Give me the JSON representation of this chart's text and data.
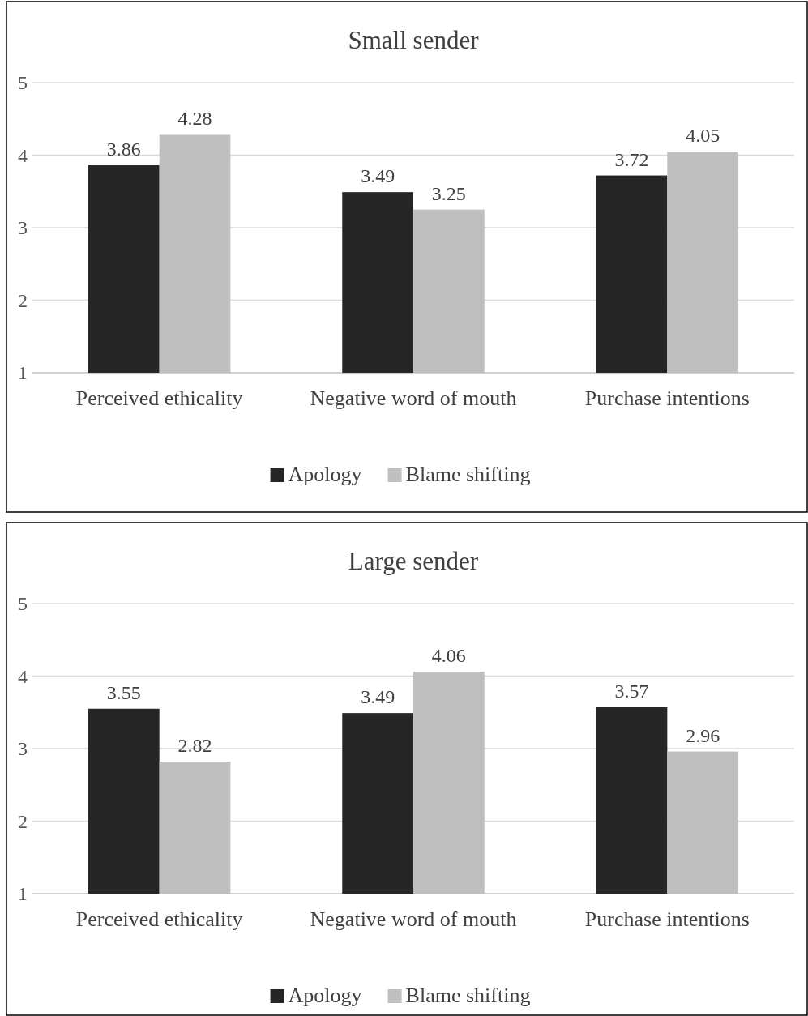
{
  "chart_data": [
    {
      "type": "bar",
      "title": "Small sender",
      "categories": [
        "Perceived ethicality",
        "Negative word of mouth",
        "Purchase intentions"
      ],
      "series": [
        {
          "name": "Apology",
          "color": "#262626",
          "values": [
            3.86,
            3.49,
            3.72
          ]
        },
        {
          "name": "Blame shifting",
          "color": "#bfbfbf",
          "values": [
            4.28,
            3.25,
            4.05
          ]
        }
      ],
      "ylim": [
        1,
        5
      ],
      "yticks": [
        1,
        2,
        3,
        4,
        5
      ],
      "grid": "y",
      "legend": "bottom",
      "data_labels": true
    },
    {
      "type": "bar",
      "title": "Large sender",
      "categories": [
        "Perceived ethicality",
        "Negative word of mouth",
        "Purchase intentions"
      ],
      "series": [
        {
          "name": "Apology",
          "color": "#262626",
          "values": [
            3.55,
            3.49,
            3.57
          ]
        },
        {
          "name": "Blame shifting",
          "color": "#bfbfbf",
          "values": [
            2.82,
            4.06,
            2.96
          ]
        }
      ],
      "ylim": [
        1,
        5
      ],
      "yticks": [
        1,
        2,
        3,
        4,
        5
      ],
      "grid": "y",
      "legend": "bottom",
      "data_labels": true
    }
  ]
}
